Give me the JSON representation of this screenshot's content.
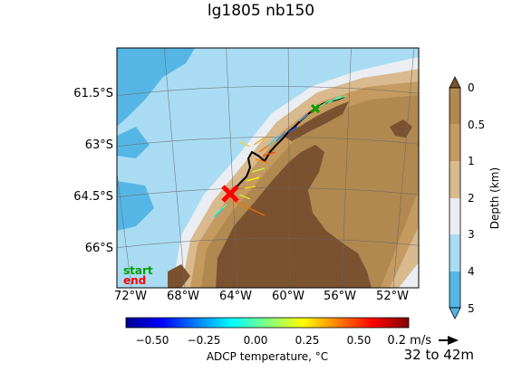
{
  "title": "lg1805 nb150",
  "map": {
    "lat_labels": [
      "61.5°S",
      "63°S",
      "64.5°S",
      "66°S"
    ],
    "lon_labels": [
      "72°W",
      "68°W",
      "64°W",
      "60°W",
      "56°W",
      "52°W"
    ],
    "legend": {
      "start": "start",
      "end": "end",
      "start_color": "#00a000",
      "end_color": "#ff0000"
    },
    "land_color": "#7b5230"
  },
  "depth_colorbar": {
    "label": "Depth (km)",
    "ticks": [
      "0",
      "0.5",
      "1",
      "2",
      "3",
      "4",
      "5"
    ],
    "colors": [
      "#b08850",
      "#c49a60",
      "#d9b98e",
      "#eaeef3",
      "#a9dcf3",
      "#55b6e6"
    ]
  },
  "temp_colorbar": {
    "label": "ADCP temperature, °C",
    "ticks": [
      "−0.50",
      "−0.25",
      "0.00",
      "0.25",
      "0.50"
    ],
    "range": [
      -0.65,
      0.75
    ]
  },
  "scale": {
    "label": "0.2 m/s",
    "depth_range": "32 to 42m"
  },
  "chart_data": {
    "type": "map",
    "title": "lg1805 nb150",
    "lat_ticks": [
      -61.5,
      -63,
      -64.5,
      -66
    ],
    "lon_ticks": [
      -72,
      -68,
      -64,
      -60,
      -56,
      -52
    ],
    "depth_levels_km": [
      0,
      0.5,
      1,
      2,
      3,
      4,
      5
    ],
    "temperature_range_c": [
      -0.65,
      0.75
    ],
    "reference_vector_m_s": 0.2,
    "depth_bin": "32 to 42m"
  }
}
